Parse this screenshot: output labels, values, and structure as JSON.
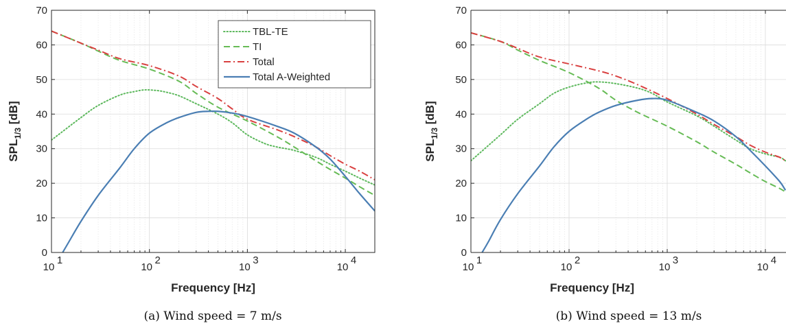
{
  "chart_data": [
    {
      "type": "line",
      "caption": "(a) Wind speed = 7 m/s",
      "xlabel": "Frequency [Hz]",
      "ylabel": "SPL",
      "ylabel_sub": "1/3",
      "ylabel_unit": " [dB]",
      "xscale": "log",
      "xlim": [
        10,
        20000
      ],
      "ylim": [
        0,
        70
      ],
      "grid": true,
      "legend_position": "top-right",
      "x_tick_labels": [
        {
          "base": "10",
          "exp": "1"
        },
        {
          "base": "10",
          "exp": "2"
        },
        {
          "base": "10",
          "exp": "3"
        },
        {
          "base": "10",
          "exp": "4"
        }
      ],
      "y_tick_labels": [
        "0",
        "10",
        "20",
        "30",
        "40",
        "50",
        "60",
        "70"
      ],
      "series": [
        {
          "name": "TBL-TE",
          "color": "#5cb85c",
          "dash": "dotted",
          "points": [
            [
              10,
              32.5
            ],
            [
              20,
              39
            ],
            [
              30,
              42.5
            ],
            [
              50,
              45.5
            ],
            [
              70,
              46.5
            ],
            [
              90,
              47
            ],
            [
              120,
              46.8
            ],
            [
              150,
              46.3
            ],
            [
              200,
              45.3
            ],
            [
              300,
              43
            ],
            [
              500,
              40
            ],
            [
              700,
              37.5
            ],
            [
              1000,
              34
            ],
            [
              1500,
              31.5
            ],
            [
              2000,
              30.5
            ],
            [
              3000,
              29.5
            ],
            [
              5000,
              27.5
            ],
            [
              7000,
              25.5
            ],
            [
              10000,
              23.5
            ],
            [
              14000,
              21.5
            ],
            [
              20000,
              19.5
            ]
          ]
        },
        {
          "name": "TI",
          "color": "#66bb55",
          "dash": "dashed",
          "points": [
            [
              10,
              64
            ],
            [
              20,
              60.5
            ],
            [
              30,
              58.2
            ],
            [
              50,
              55.5
            ],
            [
              100,
              53
            ],
            [
              200,
              49.5
            ],
            [
              300,
              46
            ],
            [
              500,
              42
            ],
            [
              1000,
              38
            ],
            [
              2000,
              33.5
            ],
            [
              3000,
              30.5
            ],
            [
              5000,
              26.5
            ],
            [
              7000,
              24
            ],
            [
              10000,
              21.5
            ],
            [
              14000,
              19
            ],
            [
              20000,
              16.5
            ]
          ]
        },
        {
          "name": "Total",
          "color": "#d94040",
          "dash": "dashdot",
          "points": [
            [
              10,
              64
            ],
            [
              20,
              60.5
            ],
            [
              30,
              58.5
            ],
            [
              50,
              56
            ],
            [
              100,
              54
            ],
            [
              200,
              51
            ],
            [
              300,
              48
            ],
            [
              500,
              44.5
            ],
            [
              700,
              41.5
            ],
            [
              1000,
              38.5
            ],
            [
              2000,
              35.5
            ],
            [
              3000,
              33.5
            ],
            [
              5000,
              30.5
            ],
            [
              7000,
              28
            ],
            [
              10000,
              25.5
            ],
            [
              14000,
              23.5
            ],
            [
              20000,
              21
            ]
          ]
        },
        {
          "name": "Total A-Weighted",
          "color": "#4a7eb3",
          "dash": "solid",
          "points": [
            [
              13,
              0
            ],
            [
              15,
              3
            ],
            [
              20,
              9
            ],
            [
              30,
              16.5
            ],
            [
              50,
              24.5
            ],
            [
              70,
              30
            ],
            [
              100,
              34.5
            ],
            [
              150,
              37.5
            ],
            [
              200,
              39
            ],
            [
              300,
              40.5
            ],
            [
              400,
              40.8
            ],
            [
              500,
              40.8
            ],
            [
              700,
              40.3
            ],
            [
              1000,
              39.3
            ],
            [
              2000,
              36.5
            ],
            [
              3000,
              34.5
            ],
            [
              5000,
              30.5
            ],
            [
              7000,
              27
            ],
            [
              10000,
              22
            ],
            [
              14000,
              17
            ],
            [
              20000,
              12
            ]
          ]
        }
      ]
    },
    {
      "type": "line",
      "caption": "(b) Wind speed = 13 m/s",
      "xlabel": "Frequency [Hz]",
      "ylabel": "SPL",
      "ylabel_sub": "1/3",
      "ylabel_unit": " [dB]",
      "xscale": "log",
      "xlim": [
        10,
        20000
      ],
      "ylim": [
        0,
        70
      ],
      "grid": true,
      "x_tick_labels": [
        {
          "base": "10",
          "exp": "1"
        },
        {
          "base": "10",
          "exp": "2"
        },
        {
          "base": "10",
          "exp": "3"
        },
        {
          "base": "10",
          "exp": "4"
        }
      ],
      "y_tick_labels": [
        "0",
        "10",
        "20",
        "30",
        "40",
        "50",
        "60",
        "70"
      ],
      "series": [
        {
          "color": "#5cb85c",
          "dash": "dotted",
          "points": [
            [
              10,
              26.5
            ],
            [
              20,
              34
            ],
            [
              30,
              38.5
            ],
            [
              50,
              43
            ],
            [
              70,
              46
            ],
            [
              100,
              47.8
            ],
            [
              150,
              49
            ],
            [
              200,
              49.3
            ],
            [
              300,
              48.8
            ],
            [
              500,
              47.5
            ],
            [
              700,
              46
            ],
            [
              1000,
              43.5
            ],
            [
              2000,
              39.5
            ],
            [
              3000,
              36.5
            ],
            [
              5000,
              32.5
            ],
            [
              7000,
              30
            ],
            [
              10000,
              28.5
            ],
            [
              14000,
              27.5
            ],
            [
              16000,
              26.5
            ]
          ]
        },
        {
          "color": "#66bb55",
          "dash": "dashed",
          "points": [
            [
              10,
              63.5
            ],
            [
              20,
              61
            ],
            [
              30,
              58.5
            ],
            [
              50,
              55.5
            ],
            [
              100,
              52
            ],
            [
              200,
              47.5
            ],
            [
              300,
              44
            ],
            [
              500,
              40.5
            ],
            [
              1000,
              36.5
            ],
            [
              2000,
              32
            ],
            [
              3000,
              29
            ],
            [
              5000,
              25.5
            ],
            [
              7000,
              23
            ],
            [
              10000,
              20.5
            ],
            [
              14000,
              18.5
            ],
            [
              16000,
              17.5
            ]
          ]
        },
        {
          "color": "#d94040",
          "dash": "dashdot",
          "points": [
            [
              10,
              63.5
            ],
            [
              20,
              61
            ],
            [
              30,
              59
            ],
            [
              50,
              56.5
            ],
            [
              100,
              54.5
            ],
            [
              200,
              52.5
            ],
            [
              300,
              51
            ],
            [
              500,
              48.5
            ],
            [
              1000,
              44.5
            ],
            [
              2000,
              40
            ],
            [
              3000,
              37
            ],
            [
              5000,
              33.5
            ],
            [
              7000,
              31
            ],
            [
              10000,
              29
            ],
            [
              14000,
              27.5
            ],
            [
              16000,
              26.5
            ]
          ]
        },
        {
          "color": "#4a7eb3",
          "dash": "solid",
          "points": [
            [
              13,
              0
            ],
            [
              15,
              3
            ],
            [
              20,
              9.5
            ],
            [
              30,
              17
            ],
            [
              50,
              25
            ],
            [
              70,
              30.5
            ],
            [
              100,
              35
            ],
            [
              150,
              38.5
            ],
            [
              200,
              40.5
            ],
            [
              300,
              42.5
            ],
            [
              500,
              44
            ],
            [
              700,
              44.5
            ],
            [
              1000,
              44
            ],
            [
              2000,
              40.5
            ],
            [
              3000,
              38
            ],
            [
              5000,
              33.5
            ],
            [
              7000,
              29.5
            ],
            [
              10000,
              25
            ],
            [
              14000,
              20.5
            ],
            [
              16000,
              18
            ]
          ]
        }
      ]
    }
  ]
}
